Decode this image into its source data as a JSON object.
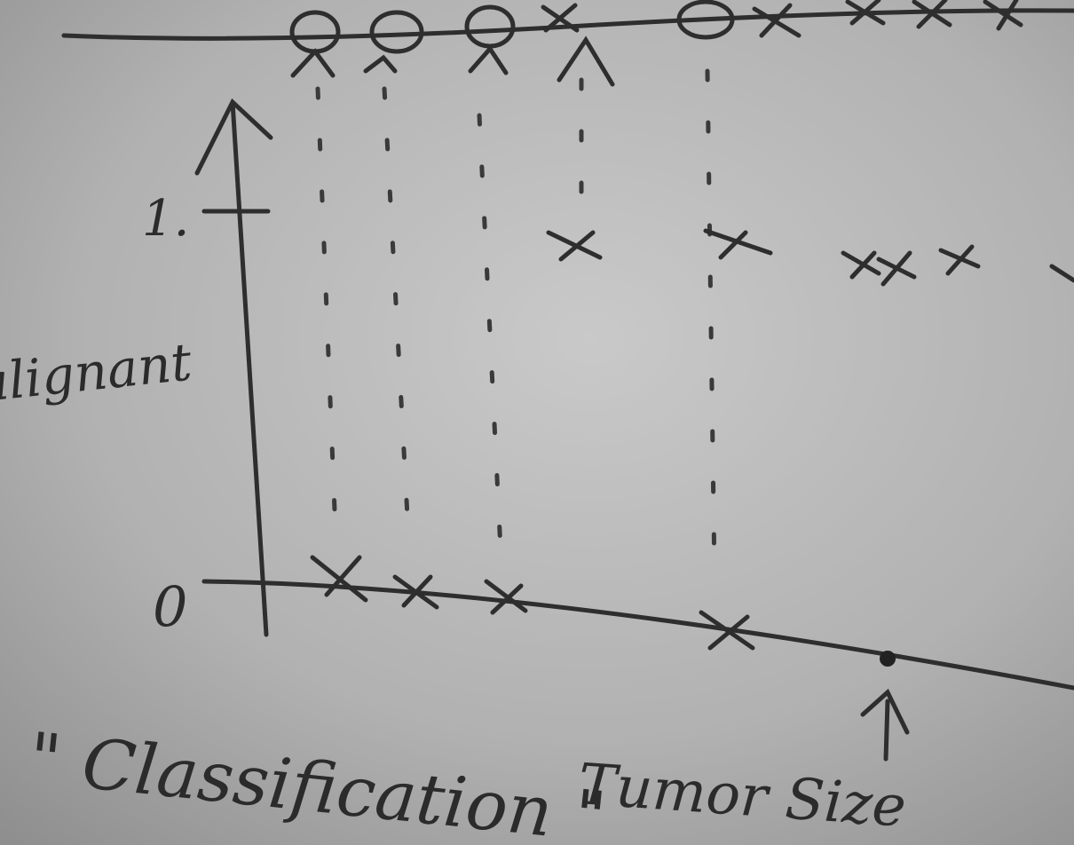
{
  "whiteboard": {
    "y_tick_one": "1.",
    "y_tick_zero": "0",
    "y_label": "nalignant",
    "x_label": "Tumor Size",
    "note": "\" Classification \""
  }
}
